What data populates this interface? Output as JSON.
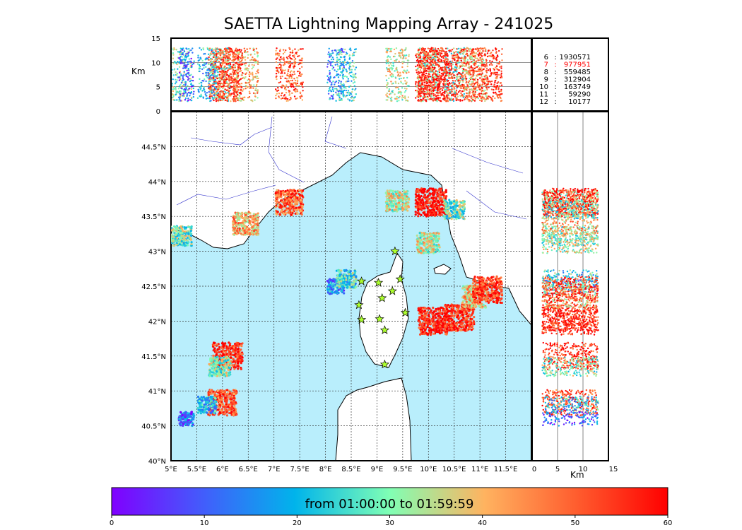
{
  "chart_data": {
    "type": "scatter",
    "title": "SAETTA Lightning Mapping Array - 241025",
    "map": {
      "lon_range": [
        5,
        12
      ],
      "lat_range": [
        40,
        45
      ],
      "lon_ticks": [
        "5°E",
        "5.5°E",
        "6°E",
        "6.5°E",
        "7°E",
        "7.5°E",
        "8°E",
        "8.5°E",
        "9°E",
        "9.5°E",
        "10°E",
        "10.5°E",
        "11°E",
        "11.5°E"
      ],
      "lat_ticks": [
        "40°N",
        "40.5°N",
        "41°N",
        "41.5°N",
        "42°N",
        "42.5°N",
        "43°N",
        "43.5°N",
        "44°N",
        "44.5°N"
      ],
      "grid": true,
      "sea_color": "#b9eefc",
      "land_color": "#ffffff",
      "stations": [
        [
          9.35,
          43.0
        ],
        [
          9.45,
          42.6
        ],
        [
          8.7,
          42.57
        ],
        [
          9.03,
          42.55
        ],
        [
          9.3,
          42.43
        ],
        [
          9.1,
          42.33
        ],
        [
          8.65,
          42.23
        ],
        [
          9.55,
          42.12
        ],
        [
          8.7,
          42.02
        ],
        [
          9.05,
          42.03
        ],
        [
          9.15,
          41.87
        ],
        [
          9.15,
          41.38
        ]
      ],
      "storm_cells": [
        {
          "lon": 5.2,
          "lat": 43.22,
          "time": 30
        },
        {
          "lon": 6.45,
          "lat": 43.4,
          "time": 42
        },
        {
          "lon": 7.3,
          "lat": 43.7,
          "time": 50
        },
        {
          "lon": 9.4,
          "lat": 43.72,
          "time": 35
        },
        {
          "lon": 10.05,
          "lat": 43.7,
          "time": 60
        },
        {
          "lon": 10.5,
          "lat": 43.6,
          "time": 28
        },
        {
          "lon": 10.0,
          "lat": 43.12,
          "time": 34
        },
        {
          "lon": 8.2,
          "lat": 42.5,
          "time": 15
        },
        {
          "lon": 8.4,
          "lat": 42.6,
          "time": 25
        },
        {
          "lon": 10.1,
          "lat": 42.0,
          "time": 58
        },
        {
          "lon": 10.6,
          "lat": 42.05,
          "time": 56
        },
        {
          "lon": 10.9,
          "lat": 42.35,
          "time": 40
        },
        {
          "lon": 11.15,
          "lat": 42.45,
          "time": 55
        },
        {
          "lon": 6.1,
          "lat": 41.5,
          "time": 56
        },
        {
          "lon": 5.95,
          "lat": 41.35,
          "time": 30
        },
        {
          "lon": 6.0,
          "lat": 40.83,
          "time": 52
        },
        {
          "lon": 5.7,
          "lat": 40.8,
          "time": 20
        },
        {
          "lon": 5.3,
          "lat": 40.6,
          "time": 10
        }
      ]
    },
    "alt_lon_panel": {
      "ylabel": "Km",
      "yticks": [
        "0",
        "5",
        "10",
        "15"
      ],
      "ylim": [
        0,
        15
      ]
    },
    "alt_lat_panel": {
      "xlabel": "Km",
      "xticks": [
        "0",
        "5",
        "10",
        "15"
      ],
      "xlim": [
        0,
        15
      ]
    },
    "counts": [
      {
        "km": "6",
        "value": "1930571",
        "color": "#000000"
      },
      {
        "km": "7",
        "value": "977951",
        "color": "#ff0000"
      },
      {
        "km": "8",
        "value": "559485",
        "color": "#000000"
      },
      {
        "km": "9",
        "value": "312904",
        "color": "#000000"
      },
      {
        "km": "10",
        "value": "163749",
        "color": "#000000"
      },
      {
        "km": "11",
        "value": "59290",
        "color": "#000000"
      },
      {
        "km": "12",
        "value": "10177",
        "color": "#000000"
      }
    ],
    "colorbar": {
      "label": "from 01:00:00 to 01:59:59",
      "range": [
        0,
        60
      ],
      "ticks": [
        "0",
        "10",
        "20",
        "30",
        "40",
        "50",
        "60"
      ],
      "colormap": "rainbow"
    }
  }
}
